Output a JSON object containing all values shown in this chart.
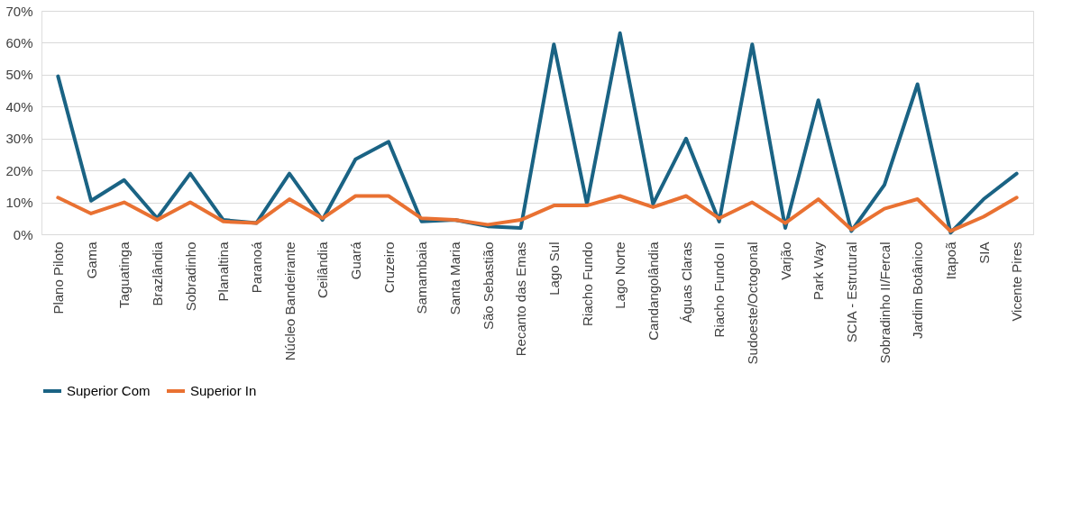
{
  "chart_data": {
    "type": "line",
    "categories": [
      "Plano Piloto",
      "Gama",
      "Taguatinga",
      "Brazlândia",
      "Sobradinho",
      "Planaltina",
      "Paranoá",
      "Núcleo Bandeirante",
      "Ceilândia",
      "Guará",
      "Cruzeiro",
      "Samambaia",
      "Santa Maria",
      "São Sebastião",
      "Recanto das Emas",
      "Lago Sul",
      "Riacho Fundo",
      "Lago Norte",
      "Candangolândia",
      "Águas Claras",
      "Riacho Fundo II",
      "Sudoeste/Octogonal",
      "Varjão",
      "Park Way",
      "SCIA - Estrutural",
      "Sobradinho II/Fercal",
      "Jardim Botânico",
      "Itapoã",
      "SIA",
      "Vicente Pires"
    ],
    "series": [
      {
        "name": "Superior Com",
        "color": "#1a6384",
        "values": [
          49.5,
          10.5,
          17,
          5,
          19,
          4.5,
          3.5,
          19,
          4.5,
          23.5,
          29,
          4,
          4.5,
          2.5,
          2,
          59.5,
          9.5,
          63,
          9.5,
          30,
          4,
          59.5,
          2,
          42,
          1,
          15.5,
          47,
          0.5,
          11,
          19
        ]
      },
      {
        "name": "Superior In",
        "color": "#e97132",
        "values": [
          11.5,
          6.5,
          10,
          4.5,
          10,
          4,
          3.5,
          11,
          5,
          12,
          12,
          5,
          4.5,
          3,
          4.5,
          9,
          9,
          12,
          8.5,
          12,
          5,
          10,
          3.5,
          11,
          1.5,
          8,
          11,
          1,
          5.5,
          11.5
        ]
      }
    ],
    "ylim": [
      0,
      70
    ],
    "yticks": [
      {
        "value": 0,
        "label": "0%"
      },
      {
        "value": 10,
        "label": "10%"
      },
      {
        "value": 20,
        "label": "20%"
      },
      {
        "value": 30,
        "label": "30%"
      },
      {
        "value": 40,
        "label": "40%"
      },
      {
        "value": 50,
        "label": "50%"
      },
      {
        "value": 60,
        "label": "60%"
      },
      {
        "value": 70,
        "label": "70%"
      }
    ],
    "grid": "y",
    "legend": "bottom",
    "marker": "none",
    "line_style": "solid"
  }
}
